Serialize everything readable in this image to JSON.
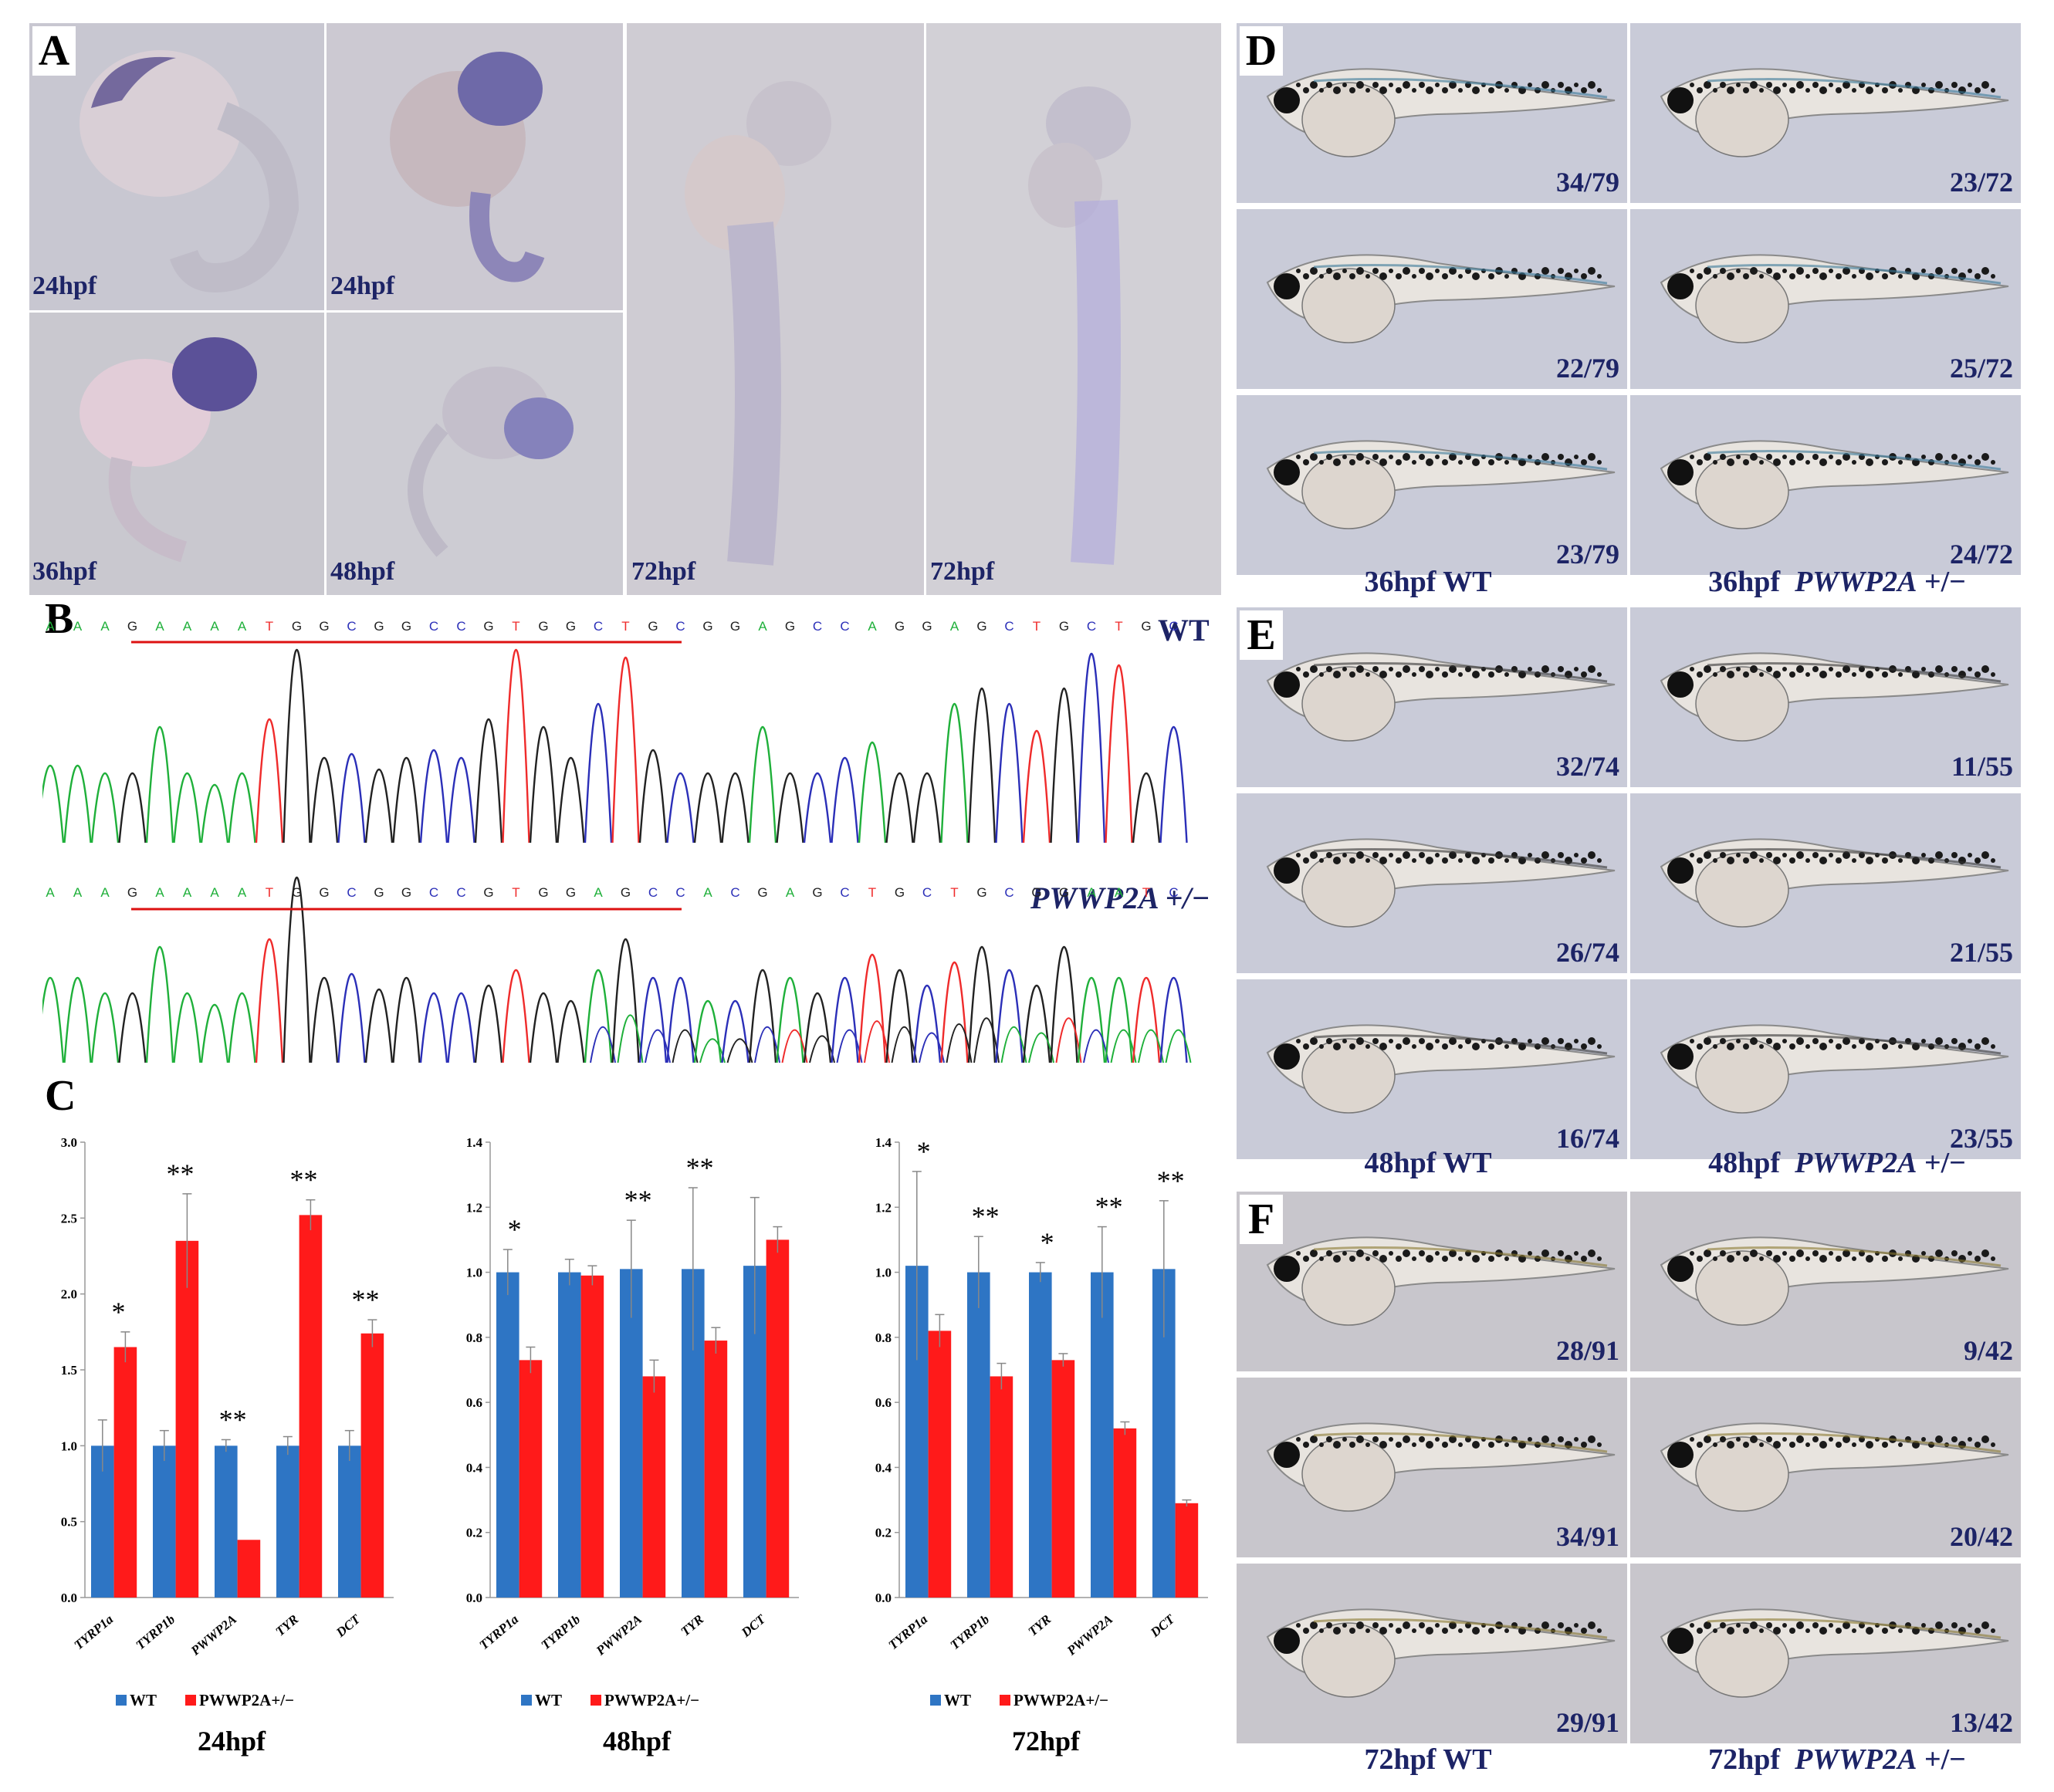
{
  "panel_letters": {
    "a": "A",
    "b": "B",
    "c": "C",
    "d": "D",
    "e": "E",
    "f": "F"
  },
  "panelA": {
    "labels": [
      "24hpf",
      "24hpf",
      "36hpf",
      "48hpf",
      "72hpf",
      "72hpf"
    ]
  },
  "panelB": {
    "wt_label": "WT",
    "mut_label": "PWWP2A +/−",
    "wt_seq": [
      "A",
      "A",
      "A",
      "G",
      "A",
      "A",
      "A",
      "A",
      "T",
      "G",
      "G",
      "C",
      "G",
      "G",
      "C",
      "C",
      "G",
      "T",
      "G",
      "G",
      "C",
      "T",
      "G",
      "C",
      "G",
      "G",
      "A",
      "G",
      "C",
      "C",
      "A",
      "G",
      "G",
      "A",
      "G",
      "C",
      "T",
      "G",
      "C",
      "T",
      "G",
      "C"
    ],
    "mut_seq": [
      "A",
      "A",
      "A",
      "G",
      "A",
      "A",
      "A",
      "A",
      "T",
      "G",
      "G",
      "C",
      "G",
      "G",
      "C",
      "C",
      "G",
      "T",
      "G",
      "G",
      "A",
      "G",
      "C",
      "C",
      "A",
      "C",
      "G",
      "A",
      "G",
      "C",
      "T",
      "G",
      "C",
      "T",
      "G",
      "C",
      "G",
      "G",
      "A",
      "A",
      "T",
      "C"
    ]
  },
  "panelD": {
    "wt_fracs": [
      "34/79",
      "22/79",
      "23/79"
    ],
    "mut_fracs": [
      "23/72",
      "25/72",
      "24/72"
    ],
    "wt_caption": "36hpf  WT",
    "mut_caption_prefix": "36hpf",
    "mut_caption_gene": "PWWP2A",
    "mut_caption_suffix": "+/−"
  },
  "panelE": {
    "wt_fracs": [
      "32/74",
      "26/74",
      "16/74"
    ],
    "mut_fracs": [
      "11/55",
      "21/55",
      "23/55"
    ],
    "wt_caption": "48hpf  WT",
    "mut_caption_prefix": "48hpf",
    "mut_caption_gene": "PWWP2A",
    "mut_caption_suffix": "+/−"
  },
  "panelF": {
    "wt_fracs": [
      "28/91",
      "34/91",
      "29/91"
    ],
    "mut_fracs": [
      "9/42",
      "20/42",
      "13/42"
    ],
    "wt_caption": "72hpf  WT",
    "mut_caption_prefix": "72hpf",
    "mut_caption_gene": "PWWP2A",
    "mut_caption_suffix": "+/−"
  },
  "colors": {
    "wt": "#2e75c4",
    "mut": "#ff1a1a",
    "navy": "#1d2466"
  },
  "chart_data": [
    {
      "type": "bar",
      "title": "24hpf",
      "categories": [
        "TYRP1a",
        "TYRP1b",
        "PWWP2A",
        "TYR",
        "DCT"
      ],
      "ylim": [
        0,
        3.0
      ],
      "yticks": [
        "0.0",
        "0.5",
        "1.0",
        "1.5",
        "2.0",
        "2.5",
        "3.0"
      ],
      "series": [
        {
          "name": "WT",
          "values": [
            1.0,
            1.0,
            1.0,
            1.0,
            1.0
          ],
          "errors": [
            0.17,
            0.1,
            0.04,
            0.06,
            0.1
          ]
        },
        {
          "name": "PWWP2A+/−",
          "values": [
            1.65,
            2.35,
            0.38,
            2.52,
            1.74
          ],
          "errors": [
            0.1,
            0.31,
            0.0,
            0.1,
            0.09
          ]
        }
      ],
      "significance": [
        "*",
        "**",
        "**",
        "**",
        "**"
      ],
      "sig_series": [
        "mut",
        "mut",
        "wt",
        "mut",
        "mut"
      ]
    },
    {
      "type": "bar",
      "title": "48hpf",
      "categories": [
        "TYRP1a",
        "TYRP1b",
        "PWWP2A",
        "TYR",
        "DCT"
      ],
      "ylim": [
        0,
        1.4
      ],
      "yticks": [
        "0.0",
        "0.2",
        "0.4",
        "0.6",
        "0.8",
        "1.0",
        "1.2",
        "1.4"
      ],
      "series": [
        {
          "name": "WT",
          "values": [
            1.0,
            1.0,
            1.01,
            1.01,
            1.02
          ],
          "errors": [
            0.07,
            0.04,
            0.15,
            0.25,
            0.21
          ]
        },
        {
          "name": "PWWP2A+/−",
          "values": [
            0.73,
            0.99,
            0.68,
            0.79,
            1.1
          ],
          "errors": [
            0.04,
            0.03,
            0.05,
            0.04,
            0.04
          ]
        }
      ],
      "significance": [
        "*",
        "",
        "**",
        "**",
        ""
      ],
      "sig_series": [
        "wt",
        "",
        "wt",
        "wt",
        ""
      ]
    },
    {
      "type": "bar",
      "title": "72hpf",
      "categories": [
        "TYRP1a",
        "TYRP1b",
        "TYR",
        "PWWP2A",
        "DCT"
      ],
      "ylim": [
        0,
        1.4
      ],
      "yticks": [
        "0.0",
        "0.2",
        "0.4",
        "0.6",
        "0.8",
        "1.0",
        "1.2",
        "1.4"
      ],
      "series": [
        {
          "name": "WT",
          "values": [
            1.02,
            1.0,
            1.0,
            1.0,
            1.01
          ],
          "errors": [
            0.29,
            0.11,
            0.03,
            0.14,
            0.21
          ]
        },
        {
          "name": "PWWP2A+/−",
          "values": [
            0.82,
            0.68,
            0.73,
            0.52,
            0.29
          ],
          "errors": [
            0.05,
            0.04,
            0.02,
            0.02,
            0.01
          ]
        }
      ],
      "significance": [
        "*",
        "**",
        "*",
        "**",
        "**"
      ],
      "sig_series": [
        "wt",
        "wt",
        "wt",
        "wt",
        "wt"
      ]
    }
  ],
  "legend": {
    "wt": "WT",
    "mut": "PWWP2A+/−"
  }
}
